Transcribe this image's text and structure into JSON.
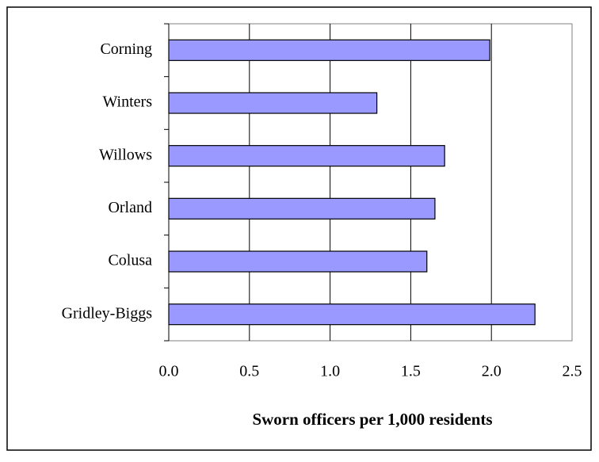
{
  "chart_data": {
    "type": "bar",
    "orientation": "horizontal",
    "x_label": "Sworn officers per 1,000 residents",
    "categories": [
      "Corning",
      "Winters",
      "Willows",
      "Orland",
      "Colusa",
      "Gridley-Biggs"
    ],
    "values": [
      1.99,
      1.29,
      1.71,
      1.65,
      1.6,
      2.27
    ],
    "color": "#9999ff",
    "xlim": [
      0,
      2.5
    ],
    "xticks": [
      {
        "value": 0,
        "label": "0.0"
      },
      0.5,
      {
        "value": 1,
        "label": "1.0"
      },
      1.5,
      {
        "value": 2,
        "label": "2.0"
      },
      2.5
    ],
    "grid": true
  }
}
